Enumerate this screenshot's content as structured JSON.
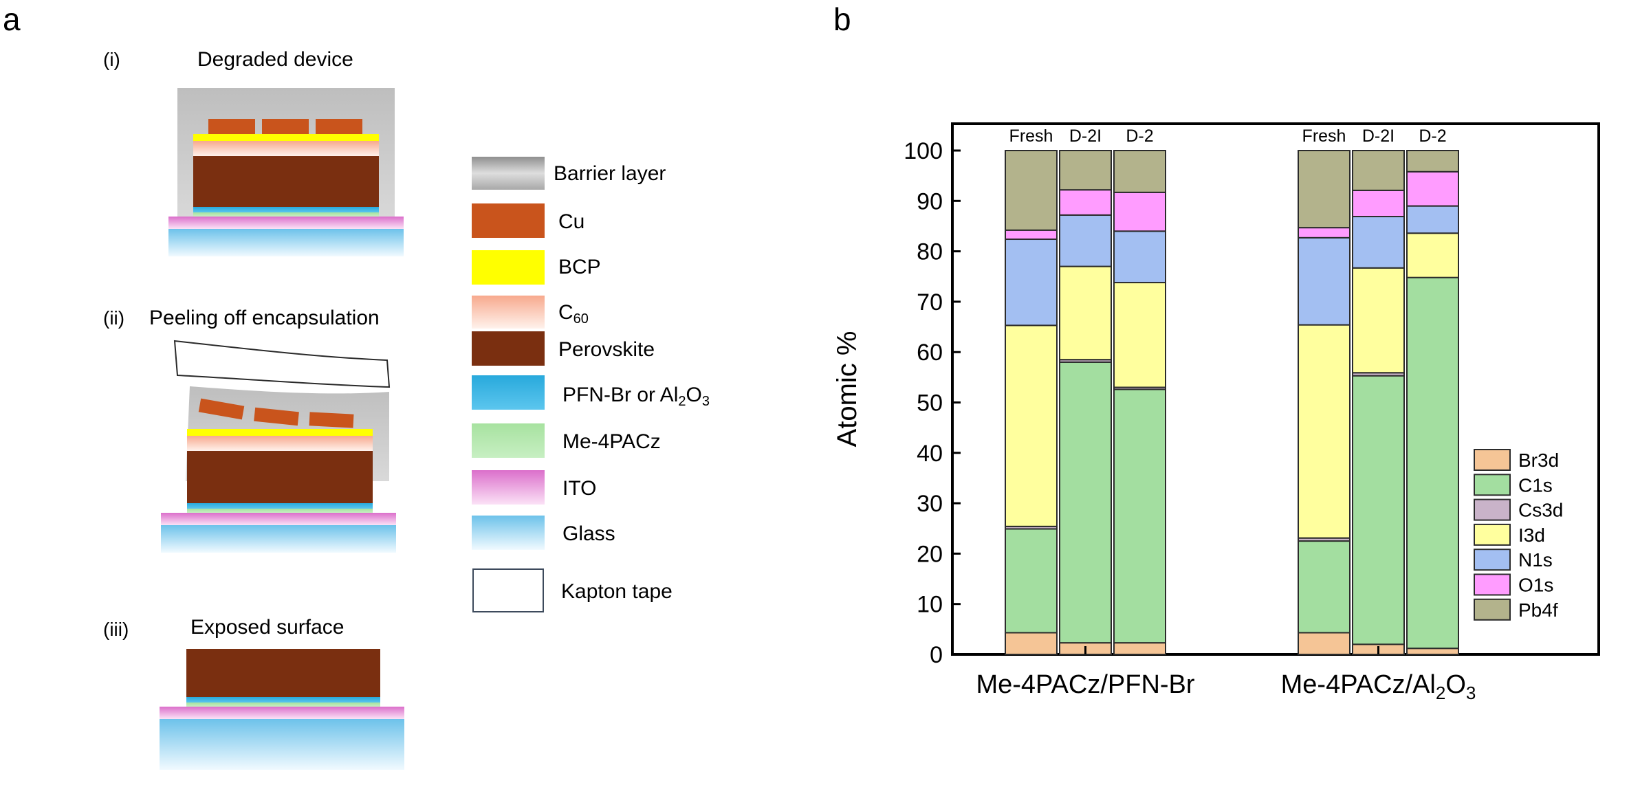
{
  "panel_a": {
    "label": "a",
    "steps": [
      {
        "numeral": "(i)",
        "title": "Degraded device"
      },
      {
        "numeral": "(ii)",
        "title": "Peeling off encapsulation"
      },
      {
        "numeral": "(iii)",
        "title": "Exposed surface"
      }
    ],
    "legend": [
      {
        "key": "barrier",
        "label": "Barrier layer"
      },
      {
        "key": "cu",
        "label": "Cu"
      },
      {
        "key": "bcp",
        "label": "BCP"
      },
      {
        "key": "c60",
        "label": "C",
        "sub": "60"
      },
      {
        "key": "perovskite",
        "label": "Perovskite"
      },
      {
        "key": "pfn",
        "label": "PFN-Br or Al",
        "sub": "2",
        "label2": "O",
        "sub2": "3"
      },
      {
        "key": "me4pacz",
        "label": "Me-4PACz"
      },
      {
        "key": "ito",
        "label": "ITO"
      },
      {
        "key": "glass",
        "label": "Glass"
      },
      {
        "key": "kapton",
        "label": "Kapton tape"
      }
    ],
    "colors": {
      "cu": "#c9541c",
      "bcp": "#ffff00",
      "perovskite": "#7a2f10",
      "pfn": "#36b6e3",
      "me4pacz": "#aee6a5",
      "ito": "#e58ad6",
      "glass": "#7ec8ec",
      "c60": "#f39a7c",
      "barrier": "#bdbdbd"
    }
  },
  "panel_b": {
    "label": "b"
  },
  "chart_data": {
    "type": "bar",
    "stacked": true,
    "ylabel": "Atomic %",
    "ylim": [
      0,
      100
    ],
    "yticks": [
      0,
      10,
      20,
      30,
      40,
      50,
      60,
      70,
      80,
      90,
      100
    ],
    "groups": [
      {
        "label": "Me-4PACz/PFN-Br",
        "label_sub": "",
        "label_tail": ""
      },
      {
        "label": "Me-4PACz/Al",
        "label_sub": "2",
        "label_mid": "O",
        "label_sub2": "3"
      }
    ],
    "bar_labels": [
      "Fresh",
      "D-2I",
      "D-2"
    ],
    "legend_position": "bottom-right",
    "series": [
      {
        "name": "Br3d",
        "color": "#f5c596",
        "values": [
          [
            4.3,
            2.3,
            2.3
          ],
          [
            4.3,
            2.0,
            1.2
          ]
        ]
      },
      {
        "name": "C1s",
        "color": "#a3dea0",
        "values": [
          [
            20.6,
            55.7,
            50.3
          ],
          [
            18.2,
            53.3,
            73.6
          ]
        ]
      },
      {
        "name": "Cs3d",
        "color": "#c9b3c9",
        "values": [
          [
            0.5,
            0.5,
            0.4
          ],
          [
            0.6,
            0.6,
            0.0
          ]
        ]
      },
      {
        "name": "I3d",
        "color": "#ffff9e",
        "values": [
          [
            39.9,
            18.5,
            20.8
          ],
          [
            42.3,
            20.8,
            8.8
          ]
        ]
      },
      {
        "name": "N1s",
        "color": "#a3bff2",
        "values": [
          [
            17.1,
            10.2,
            10.2
          ],
          [
            17.3,
            10.2,
            5.4
          ]
        ]
      },
      {
        "name": "O1s",
        "color": "#ff9cff",
        "values": [
          [
            1.8,
            5.0,
            7.7
          ],
          [
            2.0,
            5.2,
            6.8
          ]
        ]
      },
      {
        "name": "Pb4f",
        "color": "#b3b38c",
        "values": [
          [
            15.8,
            7.8,
            8.3
          ],
          [
            15.3,
            7.9,
            4.2
          ]
        ]
      }
    ]
  }
}
